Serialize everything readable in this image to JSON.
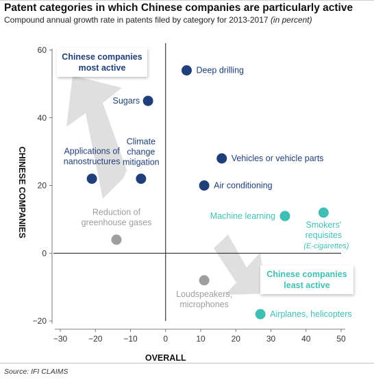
{
  "title": "Patent categories in which Chinese companies are particularly active",
  "subtitle": "Compound annual growth rate in patents filed by category for 2013-2017",
  "subtitle_unit": "(in percent)",
  "source": "Source: IFI CLAIMS",
  "colors": {
    "most_active": "#1f3f7a",
    "least_active": "#3fbfb4",
    "neutral": "#9e9e9e",
    "arrow": "#dcdcdc"
  },
  "chart_data": {
    "type": "scatter",
    "title": "Patent categories in which Chinese companies are particularly active",
    "subtitle": "Compound annual growth rate in patents filed by category for 2013-2017 (in percent)",
    "xlabel": "OVERALL",
    "ylabel": "CHINESE COMPANIES",
    "xlim": [
      -30,
      50
    ],
    "ylim": [
      -20,
      60
    ],
    "xticks": [
      -30,
      -20,
      -10,
      0,
      10,
      20,
      30,
      40,
      50
    ],
    "yticks": [
      -20,
      0,
      20,
      40,
      60
    ],
    "grid": false,
    "points": [
      {
        "label": "Deep drilling",
        "x": 6,
        "y": 54,
        "group": "most_active"
      },
      {
        "label": "Sugars",
        "x": -5,
        "y": 45,
        "group": "most_active"
      },
      {
        "label": "Vehicles or vehicle parts",
        "x": 16,
        "y": 28,
        "group": "most_active"
      },
      {
        "label": "Applications of nanostructures",
        "x": -21,
        "y": 22,
        "group": "most_active"
      },
      {
        "label": "Climate change mitigation",
        "x": -7,
        "y": 22,
        "group": "most_active"
      },
      {
        "label": "Air conditioning",
        "x": 11,
        "y": 20,
        "group": "most_active"
      },
      {
        "label": "Machine learning",
        "x": 34,
        "y": 11,
        "group": "least_active"
      },
      {
        "label": "Smokers' requisites",
        "sublabel": "(E-cigarettes)",
        "x": 45,
        "y": 12,
        "group": "least_active"
      },
      {
        "label": "Reduction of greenhouse gases",
        "x": -14,
        "y": 4,
        "group": "neutral"
      },
      {
        "label": "Loudspeakers, microphones",
        "x": 11,
        "y": -8,
        "group": "neutral"
      },
      {
        "label": "Airplanes, helicopters",
        "x": 27,
        "y": -18,
        "group": "least_active"
      }
    ],
    "annotations": [
      {
        "text": "Chinese companies most active",
        "group": "most_active"
      },
      {
        "text": "Chinese companies least active",
        "group": "least_active"
      }
    ]
  }
}
